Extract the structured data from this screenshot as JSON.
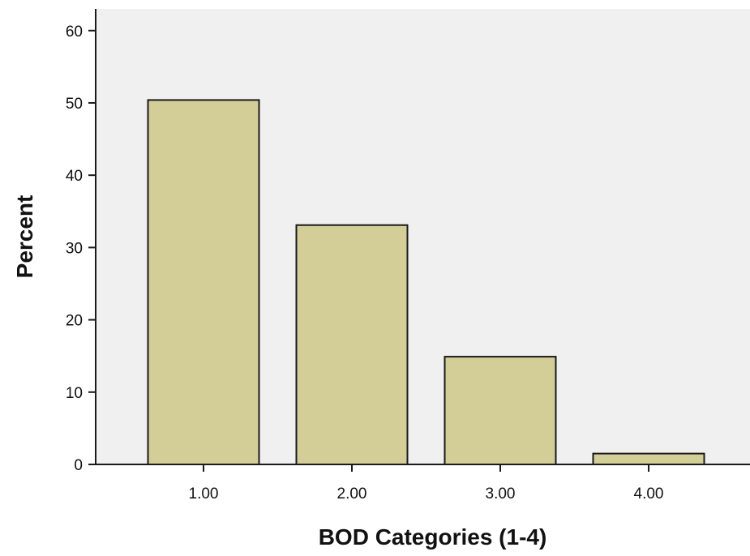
{
  "chart_data": {
    "type": "bar",
    "categories": [
      "1.00",
      "2.00",
      "3.00",
      "4.00"
    ],
    "values": [
      50.4,
      33.1,
      14.9,
      1.5
    ],
    "xlabel": "BOD Categories (1-4)",
    "ylabel": "Percent",
    "ylim": [
      0,
      63
    ],
    "yticks": [
      "0",
      "10",
      "20",
      "30",
      "40",
      "50",
      "60"
    ],
    "grid": false,
    "legend": "none",
    "colors": {
      "plot_background": "#f0f0f0",
      "bar_fill": "#d3ce98",
      "bar_stroke": "#1a1a1a",
      "axis": "#1a1a1a"
    }
  }
}
